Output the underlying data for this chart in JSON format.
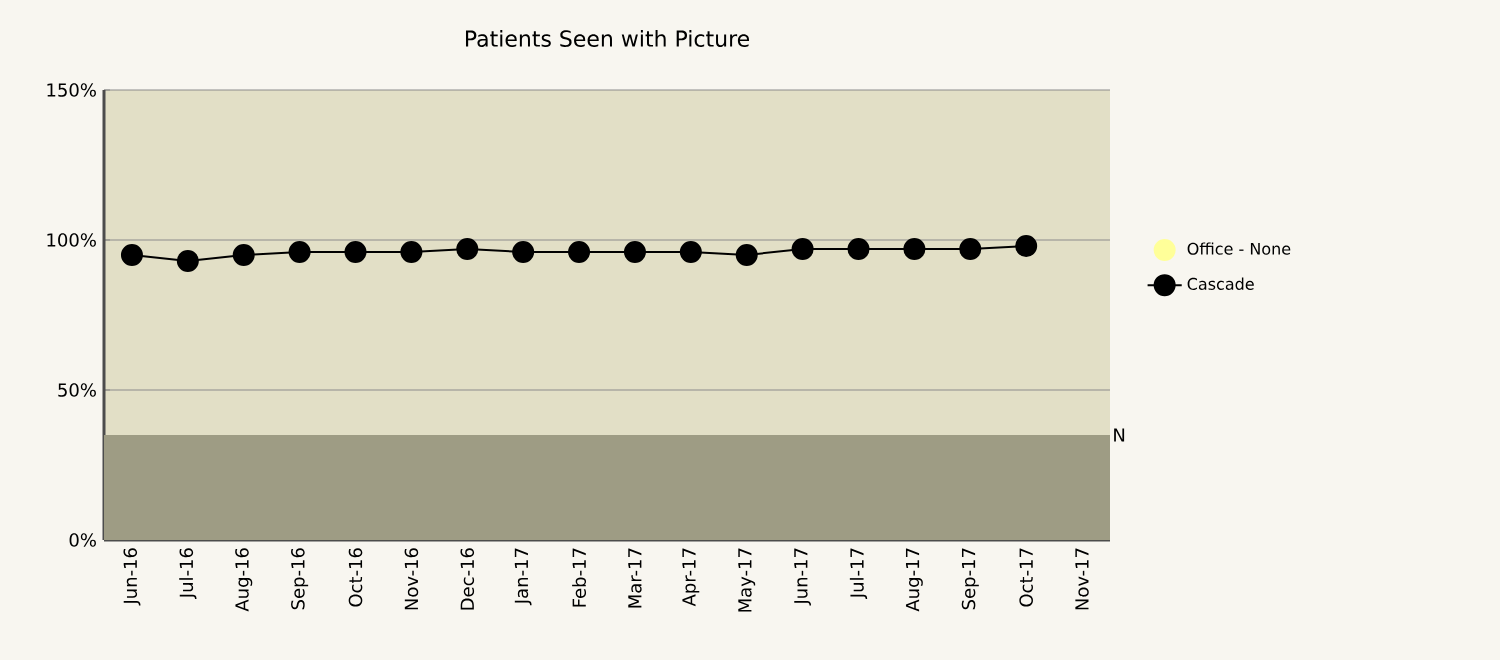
{
  "chart_data": {
    "type": "line",
    "title": "Patients Seen with Picture",
    "categories": [
      "Jun-16",
      "Jul-16",
      "Aug-16",
      "Sep-16",
      "Oct-16",
      "Nov-16",
      "Dec-16",
      "Jan-17",
      "Feb-17",
      "Mar-17",
      "Apr-17",
      "May-17",
      "Jun-17",
      "Jul-17",
      "Aug-17",
      "Sep-17",
      "Oct-17",
      "Nov-17"
    ],
    "series": [
      {
        "name": "Office - None",
        "color": "#ffff99",
        "values": [
          null,
          null,
          null,
          null,
          null,
          null,
          null,
          null,
          null,
          null,
          null,
          null,
          null,
          null,
          null,
          null,
          null,
          null
        ]
      },
      {
        "name": "Cascade",
        "color": "#000000",
        "values": [
          95,
          93,
          95,
          96,
          96,
          96,
          97,
          96,
          96,
          96,
          96,
          95,
          97,
          97,
          97,
          97,
          98,
          null
        ]
      }
    ],
    "ylim": [
      0,
      150
    ],
    "yticks": [
      {
        "value": 0,
        "label": "0%"
      },
      {
        "value": 50,
        "label": "50%"
      },
      {
        "value": 100,
        "label": "100%"
      },
      {
        "value": 150,
        "label": "150%"
      }
    ],
    "bands": [
      {
        "axis": "y",
        "from": 0,
        "to": 35,
        "label": "N",
        "color": "#9e9c84"
      }
    ],
    "grid": "y",
    "legend": "right",
    "marker": "circle",
    "line_style": "solid"
  }
}
